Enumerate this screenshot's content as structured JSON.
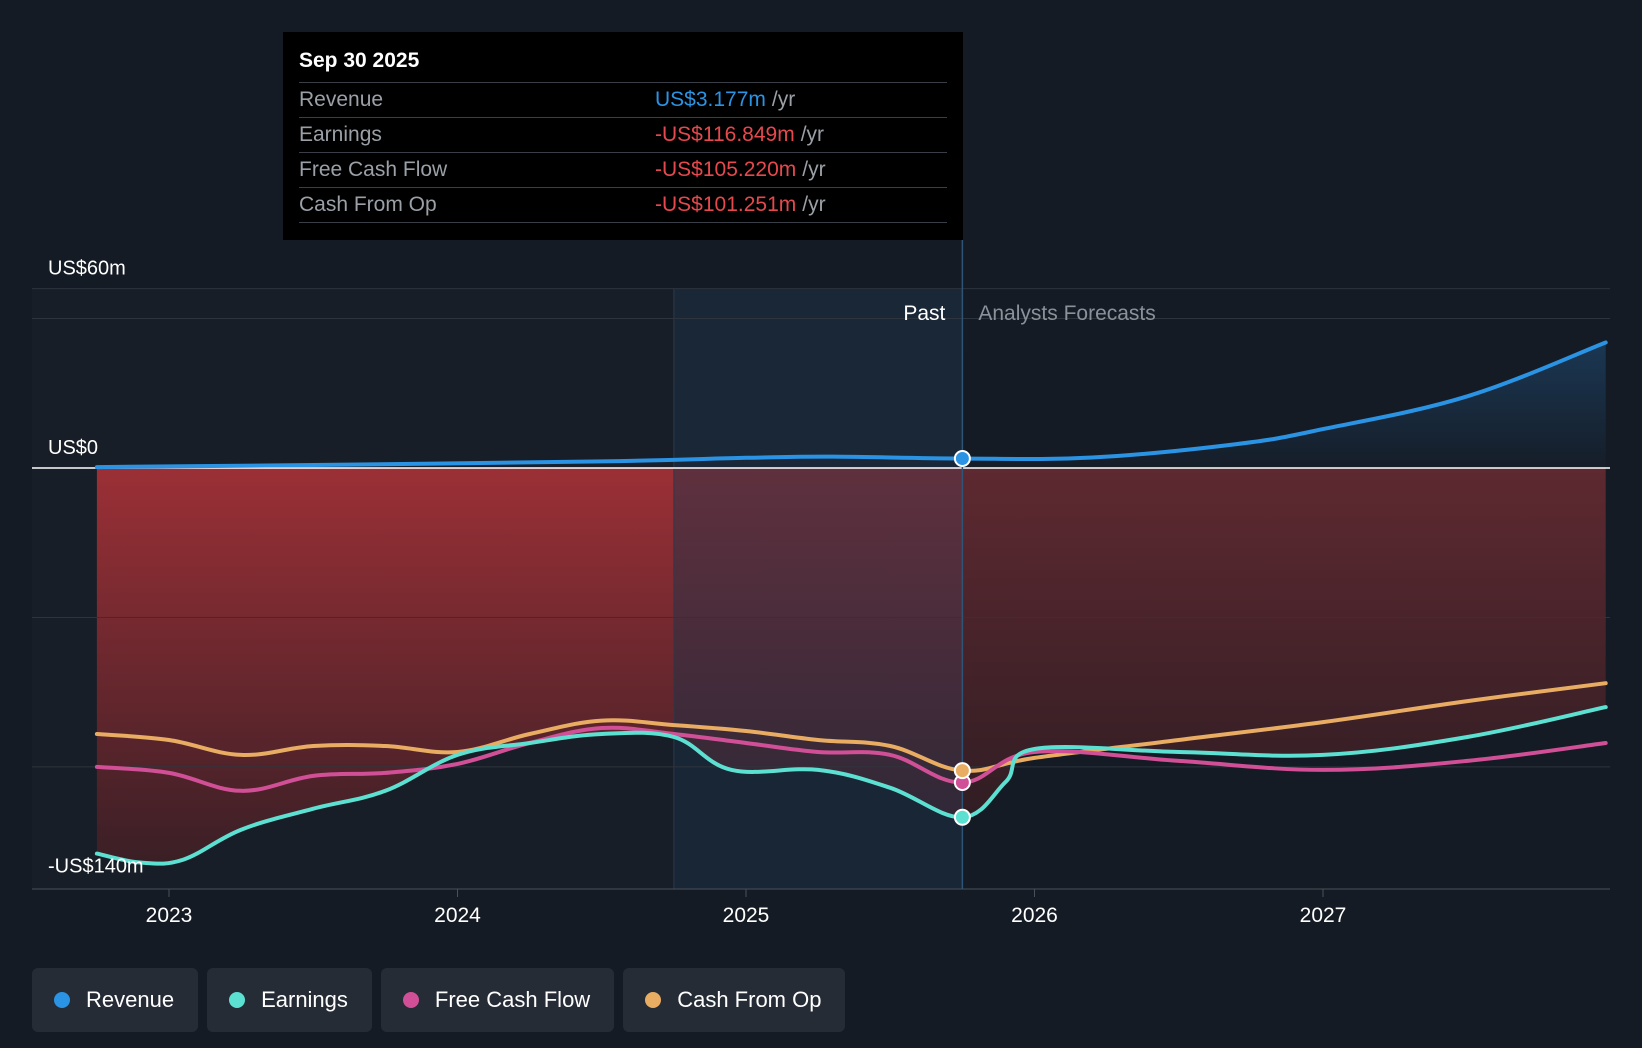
{
  "chart_data": {
    "type": "line",
    "title": "",
    "y_axis": {
      "unit": "US$m",
      "ylim": [
        -140,
        60
      ],
      "tick_labels": [
        {
          "value": 60,
          "label": "US$60m"
        },
        {
          "value": 0,
          "label": "US$0"
        },
        {
          "value": -140,
          "label": "-US$140m"
        }
      ]
    },
    "x_axis": {
      "xlim": [
        2022.7,
        2027.98
      ],
      "ticks": [
        {
          "value": 2023,
          "label": "2023"
        },
        {
          "value": 2024,
          "label": "2024"
        },
        {
          "value": 2025,
          "label": "2025"
        },
        {
          "value": 2026,
          "label": "2026"
        },
        {
          "value": 2027,
          "label": "2027"
        }
      ]
    },
    "past_label": "Past",
    "forecast_label": "Analysts Forecasts",
    "divider_x": 2025.75,
    "past_shade_start": 2024.75,
    "series": [
      {
        "name": "Revenue",
        "color": "#2b93e3",
        "points": [
          [
            2022.75,
            0.3
          ],
          [
            2023.5,
            1.0
          ],
          [
            2024.5,
            2.2
          ],
          [
            2025.0,
            3.4
          ],
          [
            2025.3,
            3.8
          ],
          [
            2025.75,
            3.177
          ],
          [
            2026.2,
            3.5
          ],
          [
            2026.7,
            8
          ],
          [
            2027.0,
            13
          ],
          [
            2027.5,
            24
          ],
          [
            2027.98,
            42
          ]
        ]
      },
      {
        "name": "Earnings",
        "color": "#5ce0d2",
        "points": [
          [
            2022.75,
            -129
          ],
          [
            2022.9,
            -132
          ],
          [
            2023.05,
            -131
          ],
          [
            2023.25,
            -121
          ],
          [
            2023.5,
            -114
          ],
          [
            2023.75,
            -108
          ],
          [
            2024.0,
            -96
          ],
          [
            2024.25,
            -92
          ],
          [
            2024.5,
            -89
          ],
          [
            2024.75,
            -90
          ],
          [
            2024.95,
            -101
          ],
          [
            2025.25,
            -101
          ],
          [
            2025.5,
            -107
          ],
          [
            2025.75,
            -116.849
          ],
          [
            2025.9,
            -105
          ],
          [
            2026.0,
            -94
          ],
          [
            2026.5,
            -95
          ],
          [
            2027.0,
            -96
          ],
          [
            2027.5,
            -90
          ],
          [
            2027.98,
            -80
          ]
        ]
      },
      {
        "name": "Free Cash Flow",
        "color": "#d14f96",
        "points": [
          [
            2022.75,
            -100
          ],
          [
            2023.0,
            -102
          ],
          [
            2023.25,
            -108
          ],
          [
            2023.5,
            -103
          ],
          [
            2023.75,
            -102
          ],
          [
            2024.0,
            -99
          ],
          [
            2024.25,
            -92
          ],
          [
            2024.5,
            -87
          ],
          [
            2024.75,
            -89
          ],
          [
            2025.0,
            -92
          ],
          [
            2025.25,
            -95
          ],
          [
            2025.5,
            -96
          ],
          [
            2025.75,
            -105.22
          ],
          [
            2026.0,
            -95
          ],
          [
            2026.5,
            -98
          ],
          [
            2027.0,
            -101
          ],
          [
            2027.5,
            -98
          ],
          [
            2027.98,
            -92
          ]
        ]
      },
      {
        "name": "Cash From Op",
        "color": "#e8ac62",
        "points": [
          [
            2022.75,
            -89
          ],
          [
            2023.0,
            -91
          ],
          [
            2023.25,
            -96
          ],
          [
            2023.5,
            -93
          ],
          [
            2023.75,
            -93
          ],
          [
            2024.0,
            -95
          ],
          [
            2024.25,
            -89
          ],
          [
            2024.5,
            -84.5
          ],
          [
            2024.75,
            -86
          ],
          [
            2025.0,
            -88
          ],
          [
            2025.25,
            -91
          ],
          [
            2025.5,
            -93
          ],
          [
            2025.75,
            -101.251
          ],
          [
            2026.0,
            -97
          ],
          [
            2026.5,
            -91
          ],
          [
            2027.0,
            -85
          ],
          [
            2027.5,
            -78
          ],
          [
            2027.98,
            -72
          ]
        ]
      }
    ]
  },
  "tooltip": {
    "date": "Sep 30 2025",
    "rows": [
      {
        "label": "Revenue",
        "value": "US$3.177m",
        "unit": "/yr"
      },
      {
        "label": "Earnings",
        "value": "-US$116.849m",
        "unit": "/yr"
      },
      {
        "label": "Free Cash Flow",
        "value": "-US$105.220m",
        "unit": "/yr"
      },
      {
        "label": "Cash From Op",
        "value": "-US$101.251m",
        "unit": "/yr"
      }
    ]
  },
  "legend": [
    {
      "label": "Revenue",
      "color": "#2b93e3"
    },
    {
      "label": "Earnings",
      "color": "#5ce0d2"
    },
    {
      "label": "Free Cash Flow",
      "color": "#d14f96"
    },
    {
      "label": "Cash From Op",
      "color": "#e8ac62"
    }
  ]
}
